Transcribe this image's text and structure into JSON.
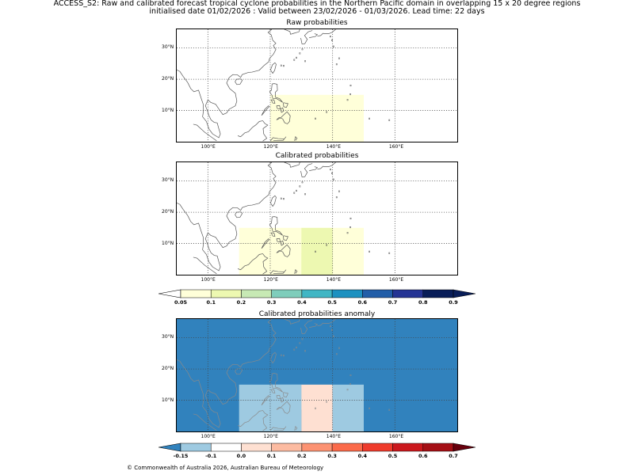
{
  "header": {
    "line1": "ACCESS_S2: Raw and calibrated forecast tropical cyclone probabilities in the Northern Pacific domain in overlapping 15 x 20 degree regions",
    "line2": "initialised date 01/02/2026 :  Valid between 23/02/2026 - 01/03/2026. Lead time: 22 days"
  },
  "axes": {
    "lat_labels": [
      "30°N",
      "20°N",
      "10°N"
    ],
    "lon_labels": [
      "100°E",
      "120°E",
      "140°E",
      "160°E"
    ]
  },
  "panels": {
    "raw": {
      "title": "Raw probabilities"
    },
    "calibrated": {
      "title": "Calibrated probabilities"
    },
    "anomaly": {
      "title": "Calibrated probabilities anomaly"
    }
  },
  "colorbars": {
    "probability": {
      "labels": [
        "0.05",
        "0.1",
        "0.2",
        "0.3",
        "0.4",
        "0.5",
        "0.6",
        "0.7",
        "0.8",
        "0.9"
      ],
      "colors": [
        "#ffffd9",
        "#edf8b1",
        "#c7e9b4",
        "#7fcdbb",
        "#41b6c4",
        "#1d91c0",
        "#225ea8",
        "#253494",
        "#081d58"
      ],
      "under_color": "#ffffff",
      "over_color": "#081d58"
    },
    "anomaly": {
      "labels": [
        "-0.15",
        "-0.1",
        "0.0",
        "0.1",
        "0.2",
        "0.3",
        "0.4",
        "0.5",
        "0.6",
        "0.7"
      ],
      "colors": [
        "#9ecae1",
        "#ffffff",
        "#fee0d2",
        "#fcbba1",
        "#fc9272",
        "#fb6a4a",
        "#ef3b2c",
        "#cb181d",
        "#a50f15"
      ],
      "under_color": "#3182bd",
      "over_color": "#67000d"
    }
  },
  "map_data": {
    "raw_regions": [
      {
        "lon": [
          120,
          150
        ],
        "lat": [
          0,
          15
        ],
        "value": 0.05
      }
    ],
    "calibrated_regions": [
      {
        "lon": [
          110,
          150
        ],
        "lat": [
          0,
          15
        ],
        "value": 0.05
      },
      {
        "lon": [
          130,
          140
        ],
        "lat": [
          0,
          15
        ],
        "value": 0.1
      },
      {
        "lon": [
          130,
          140
        ],
        "lat": [
          0,
          7
        ],
        "value": 0.12
      }
    ],
    "anomaly_background": -0.2,
    "anomaly_regions": [
      {
        "lon": [
          110,
          130
        ],
        "lat": [
          0,
          15
        ],
        "value": -0.12
      },
      {
        "lon": [
          120,
          130
        ],
        "lat": [
          7,
          15
        ],
        "value": -0.12
      },
      {
        "lon": [
          130,
          140
        ],
        "lat": [
          0,
          15
        ],
        "value": 0.0
      },
      {
        "lon": [
          140,
          150
        ],
        "lat": [
          0,
          15
        ],
        "value": -0.12
      }
    ]
  },
  "footer": "© Commonwealth of Australia 2026, Australian Bureau of Meteorology"
}
